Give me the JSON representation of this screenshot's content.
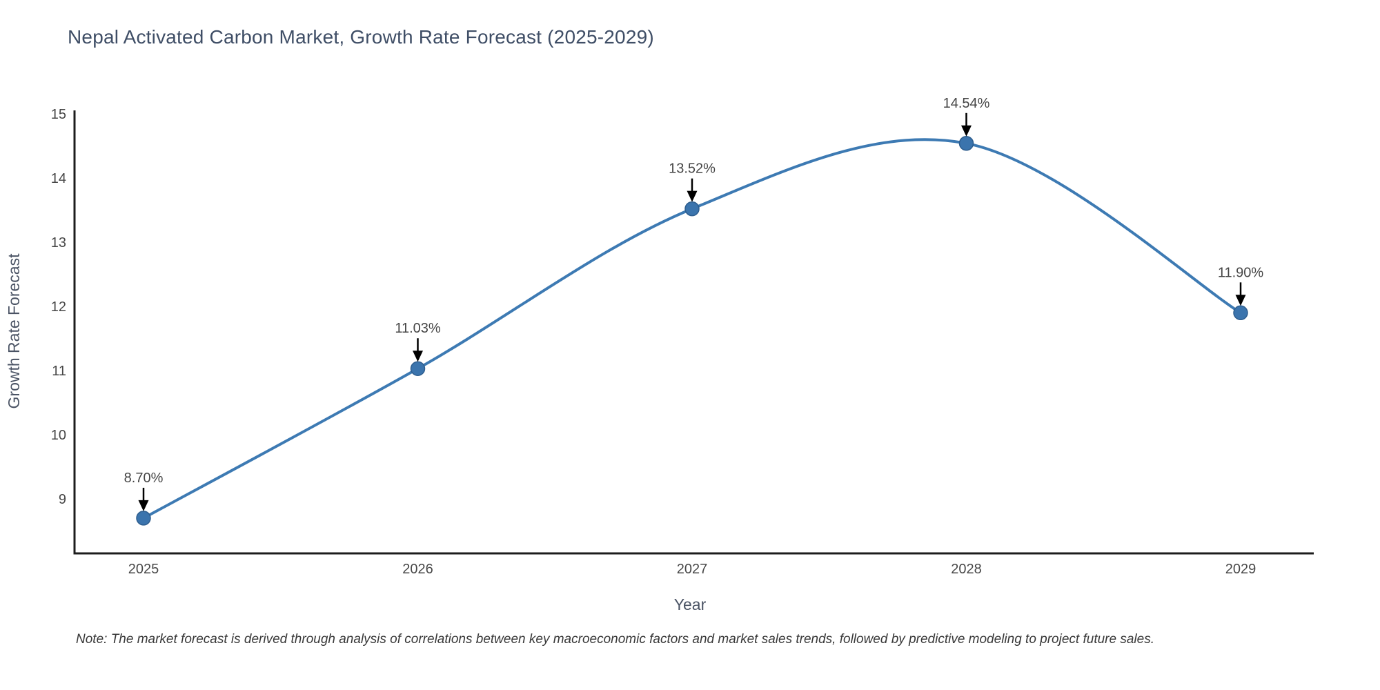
{
  "note": "Note: The market forecast is derived through analysis of correlations between key macroeconomic factors and market sales trends, followed by predictive modeling to project future sales.",
  "chart_data": {
    "type": "line",
    "title": "Nepal Activated Carbon Market, Growth Rate Forecast (2025-2029)",
    "xlabel": "Year",
    "ylabel": "Growth Rate Forecast",
    "categories": [
      "2025",
      "2026",
      "2027",
      "2028",
      "2029"
    ],
    "series": [
      {
        "name": "Growth Rate Forecast",
        "values": [
          8.7,
          11.03,
          13.52,
          14.54,
          11.9
        ]
      }
    ],
    "point_labels": [
      "8.70%",
      "11.03%",
      "13.52%",
      "14.54%",
      "11.90%"
    ],
    "yticks": [
      9,
      10,
      11,
      12,
      13,
      14,
      15
    ],
    "ylim": [
      8.15,
      15.05
    ],
    "line_shape": "spline",
    "grid": false,
    "legend": "none",
    "colors": {
      "line": "#3d7ab3",
      "marker": "#3b74ad",
      "marker_edge": "#2d5d8e",
      "axis": "#1c1c1c",
      "tick_text": "#474747",
      "axis_title_text": "#4a5364",
      "annotation_text": "#454545",
      "arrow": "#000000",
      "title_text": "#3f4e66",
      "note_text": "#383838",
      "background": "#ffffff"
    }
  }
}
